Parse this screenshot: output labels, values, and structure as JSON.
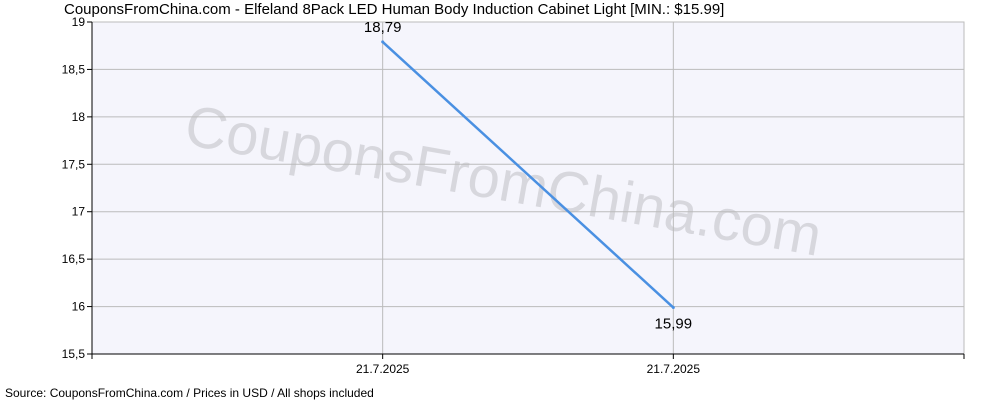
{
  "title": "CouponsFromChina.com - Elfeland 8Pack LED Human Body Induction Cabinet Light [MIN.: $15.99]",
  "source": "Source: CouponsFromChina.com / Prices in USD / All shops included",
  "watermark": "CouponsFromChina.com",
  "colors": {
    "line": "#4a90e2",
    "plot_bg": "#f5f5fc",
    "grid": "#bbbbbb",
    "axis": "#000000"
  },
  "chart_data": {
    "type": "line",
    "title": "CouponsFromChina.com - Elfeland 8Pack LED Human Body Induction Cabinet Light [MIN.: $15.99]",
    "xlabel": "",
    "ylabel": "",
    "x_categories": [
      "",
      "21.7.2025",
      "21.7.2025",
      ""
    ],
    "y_ticks": [
      "19",
      "18,5",
      "18",
      "17,5",
      "17",
      "16,5",
      "16",
      "15,5"
    ],
    "y_tick_values": [
      19,
      18.5,
      18,
      17.5,
      17,
      16.5,
      16,
      15.5
    ],
    "ylim": [
      15.5,
      19
    ],
    "grid": true,
    "series": [
      {
        "points": [
          {
            "x_index": 1,
            "y": 18.79,
            "label": "18,79"
          },
          {
            "x_index": 2,
            "y": 15.99,
            "label": "15,99"
          }
        ]
      }
    ]
  }
}
